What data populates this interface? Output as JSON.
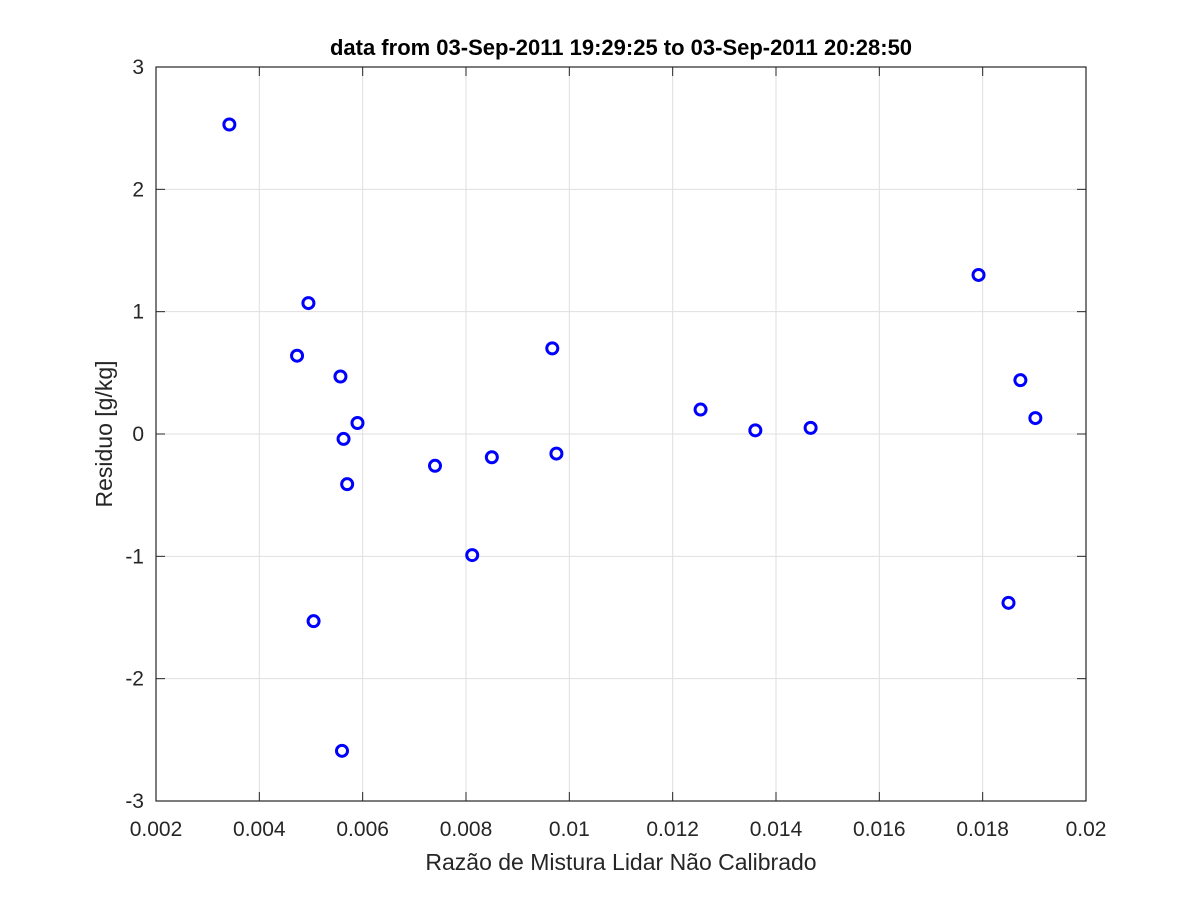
{
  "chart_data": {
    "type": "scatter",
    "title": "data from 03-Sep-2011 19:29:25 to 03-Sep-2011 20:28:50",
    "xlabel": "Razão de Mistura Lidar Não Calibrado",
    "ylabel": "Residuo [g/kg]",
    "xlim": [
      0.002,
      0.02
    ],
    "ylim": [
      -3,
      3
    ],
    "xticks": [
      "0.002",
      "0.004",
      "0.006",
      "0.008",
      "0.01",
      "0.012",
      "0.014",
      "0.016",
      "0.018",
      "0.02"
    ],
    "yticks": [
      "-3",
      "-2",
      "-1",
      "0",
      "1",
      "2",
      "3"
    ],
    "grid": true,
    "marker": "circle",
    "marker_color": "#0000ff",
    "series": [
      {
        "points": [
          {
            "x": 0.00342,
            "y": 2.53
          },
          {
            "x": 0.00473,
            "y": 0.64
          },
          {
            "x": 0.00495,
            "y": 1.07
          },
          {
            "x": 0.00505,
            "y": -1.53
          },
          {
            "x": 0.00557,
            "y": 0.47
          },
          {
            "x": 0.0056,
            "y": -2.59
          },
          {
            "x": 0.00563,
            "y": -0.04
          },
          {
            "x": 0.0057,
            "y": -0.41
          },
          {
            "x": 0.0059,
            "y": 0.09
          },
          {
            "x": 0.0074,
            "y": -0.26
          },
          {
            "x": 0.00812,
            "y": -0.99
          },
          {
            "x": 0.0085,
            "y": -0.19
          },
          {
            "x": 0.00967,
            "y": 0.7
          },
          {
            "x": 0.00975,
            "y": -0.16
          },
          {
            "x": 0.01254,
            "y": 0.2
          },
          {
            "x": 0.0136,
            "y": 0.03
          },
          {
            "x": 0.01467,
            "y": 0.05
          },
          {
            "x": 0.01792,
            "y": 1.3
          },
          {
            "x": 0.0185,
            "y": -1.38
          },
          {
            "x": 0.01873,
            "y": 0.44
          },
          {
            "x": 0.01902,
            "y": 0.13
          }
        ]
      }
    ]
  }
}
